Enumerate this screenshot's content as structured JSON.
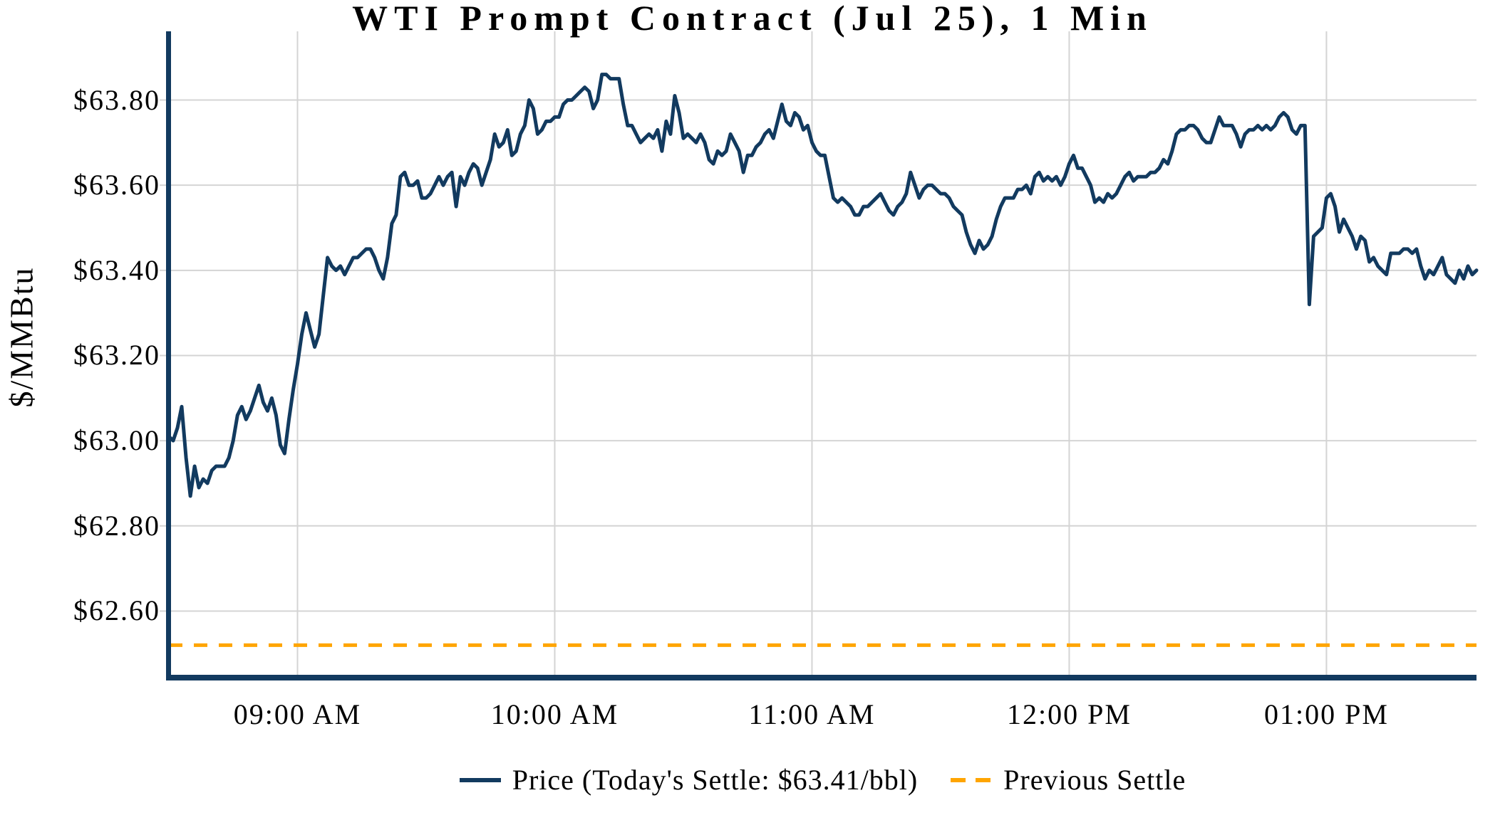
{
  "title": "WTI Prompt Contract (Jul 25), 1 Min",
  "y_axis": {
    "label": "$/MMBtu",
    "ticks": [
      {
        "label": "$63.80",
        "value": 63.8
      },
      {
        "label": "$63.60",
        "value": 63.6
      },
      {
        "label": "$63.40",
        "value": 63.4
      },
      {
        "label": "$63.20",
        "value": 63.2
      },
      {
        "label": "$63.00",
        "value": 63.0
      },
      {
        "label": "$62.80",
        "value": 62.8
      },
      {
        "label": "$62.60",
        "value": 62.6
      }
    ]
  },
  "x_axis": {
    "ticks": [
      {
        "label": "09:00 AM",
        "minute": 30
      },
      {
        "label": "10:00 AM",
        "minute": 90
      },
      {
        "label": "11:00 AM",
        "minute": 150
      },
      {
        "label": "12:00 PM",
        "minute": 210
      },
      {
        "label": "01:00 PM",
        "minute": 270
      }
    ]
  },
  "legend": {
    "price_label": "Price (Today's Settle: $63.41/bbl)",
    "prev_settle_label": "Previous Settle"
  },
  "colors": {
    "price_line": "#123a5f",
    "previous_settle": "#ffa500",
    "grid": "#d4d4d4",
    "spine": "#123a5f",
    "background": "#ffffff",
    "text": "#000000"
  },
  "chart_data": {
    "type": "line",
    "title": "WTI Prompt Contract (Jul 25), 1 Min",
    "xlabel": "",
    "ylabel": "$/MMBtu",
    "ylim": [
      62.44,
      63.93
    ],
    "grid": true,
    "legend_position": "bottom-center",
    "start_time": "08:30",
    "end_time": "13:35",
    "interval_min": 1,
    "x_tick_labels": [
      "09:00 AM",
      "10:00 AM",
      "11:00 AM",
      "12:00 PM",
      "01:00 PM"
    ],
    "today_settle": 63.41,
    "previous_settle": 62.52,
    "series": [
      {
        "name": "Price (Today's Settle: $63.41/bbl)",
        "style": "solid",
        "color": "#123a5f",
        "values": [
          63.01,
          63.0,
          63.03,
          63.08,
          62.96,
          62.87,
          62.94,
          62.89,
          62.91,
          62.9,
          62.93,
          62.94,
          62.94,
          62.94,
          62.96,
          63.0,
          63.06,
          63.08,
          63.05,
          63.07,
          63.1,
          63.13,
          63.09,
          63.07,
          63.1,
          63.06,
          62.99,
          62.97,
          63.05,
          63.12,
          63.18,
          63.25,
          63.3,
          63.26,
          63.22,
          63.25,
          63.34,
          63.43,
          63.41,
          63.4,
          63.41,
          63.39,
          63.41,
          63.43,
          63.43,
          63.44,
          63.45,
          63.45,
          63.43,
          63.4,
          63.38,
          63.43,
          63.51,
          63.53,
          63.62,
          63.63,
          63.6,
          63.6,
          63.61,
          63.57,
          63.57,
          63.58,
          63.6,
          63.62,
          63.6,
          63.62,
          63.63,
          63.55,
          63.62,
          63.6,
          63.63,
          63.65,
          63.64,
          63.6,
          63.63,
          63.66,
          63.72,
          63.69,
          63.7,
          63.73,
          63.67,
          63.68,
          63.72,
          63.74,
          63.8,
          63.78,
          63.72,
          63.73,
          63.75,
          63.75,
          63.76,
          63.76,
          63.79,
          63.8,
          63.8,
          63.81,
          63.82,
          63.83,
          63.82,
          63.78,
          63.8,
          63.86,
          63.86,
          63.85,
          63.85,
          63.85,
          63.79,
          63.74,
          63.74,
          63.72,
          63.7,
          63.71,
          63.72,
          63.71,
          63.73,
          63.68,
          63.75,
          63.72,
          63.81,
          63.77,
          63.71,
          63.72,
          63.71,
          63.7,
          63.72,
          63.7,
          63.66,
          63.65,
          63.68,
          63.67,
          63.68,
          63.72,
          63.7,
          63.68,
          63.63,
          63.67,
          63.67,
          63.69,
          63.7,
          63.72,
          63.73,
          63.71,
          63.75,
          63.79,
          63.75,
          63.74,
          63.77,
          63.76,
          63.73,
          63.74,
          63.7,
          63.68,
          63.67,
          63.67,
          63.62,
          63.57,
          63.56,
          63.57,
          63.56,
          63.55,
          63.53,
          63.53,
          63.55,
          63.55,
          63.56,
          63.57,
          63.58,
          63.56,
          63.54,
          63.53,
          63.55,
          63.56,
          63.58,
          63.63,
          63.6,
          63.57,
          63.59,
          63.6,
          63.6,
          63.59,
          63.58,
          63.58,
          63.57,
          63.55,
          63.54,
          63.53,
          63.49,
          63.46,
          63.44,
          63.47,
          63.45,
          63.46,
          63.48,
          63.52,
          63.55,
          63.57,
          63.57,
          63.57,
          63.59,
          63.59,
          63.6,
          63.58,
          63.62,
          63.63,
          63.61,
          63.62,
          63.61,
          63.62,
          63.6,
          63.62,
          63.65,
          63.67,
          63.64,
          63.64,
          63.62,
          63.6,
          63.56,
          63.57,
          63.56,
          63.58,
          63.57,
          63.58,
          63.6,
          63.62,
          63.63,
          63.61,
          63.62,
          63.62,
          63.62,
          63.63,
          63.63,
          63.64,
          63.66,
          63.65,
          63.68,
          63.72,
          63.73,
          63.73,
          63.74,
          63.74,
          63.73,
          63.71,
          63.7,
          63.7,
          63.73,
          63.76,
          63.74,
          63.74,
          63.74,
          63.72,
          63.69,
          63.72,
          63.73,
          63.73,
          63.74,
          63.73,
          63.74,
          63.73,
          63.74,
          63.76,
          63.77,
          63.76,
          63.73,
          63.72,
          63.74,
          63.74,
          63.32,
          63.48,
          63.49,
          63.5,
          63.57,
          63.58,
          63.55,
          63.49,
          63.52,
          63.5,
          63.48,
          63.45,
          63.48,
          63.47,
          63.42,
          63.43,
          63.41,
          63.4,
          63.39,
          63.44,
          63.44,
          63.44,
          63.45,
          63.45,
          63.44,
          63.45,
          63.41,
          63.38,
          63.4,
          63.39,
          63.41,
          63.43,
          63.39,
          63.38,
          63.37,
          63.4,
          63.38,
          63.41,
          63.39,
          63.4
        ]
      },
      {
        "name": "Previous Settle",
        "style": "dashed",
        "color": "#ffa500",
        "value": 62.52
      }
    ]
  }
}
